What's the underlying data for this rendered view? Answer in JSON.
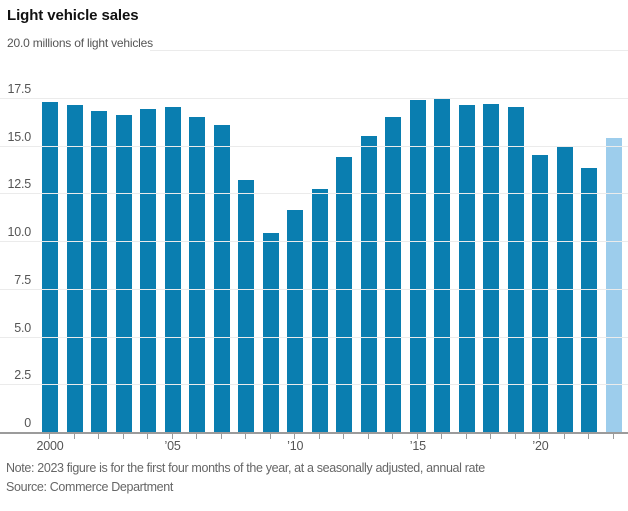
{
  "chart_data": {
    "type": "bar",
    "title": "Light vehicle sales",
    "y_axis_top_label": "20.0",
    "y_axis_unit_label": "millions of light vehicles",
    "ylabel": "millions of light vehicles",
    "xlabel": "",
    "ylim": [
      0,
      20
    ],
    "grid": true,
    "y_ticks": [
      {
        "label": "20.0",
        "value": 20
      },
      {
        "label": "17.5",
        "value": 17.5
      },
      {
        "label": "15.0",
        "value": 15
      },
      {
        "label": "12.5",
        "value": 12.5
      },
      {
        "label": "10.0",
        "value": 10
      },
      {
        "label": "7.5",
        "value": 7.5
      },
      {
        "label": "5.0",
        "value": 5
      },
      {
        "label": "2.5",
        "value": 2.5
      },
      {
        "label": "0",
        "value": 0
      }
    ],
    "categories": [
      2000,
      2001,
      2002,
      2003,
      2004,
      2005,
      2006,
      2007,
      2008,
      2009,
      2010,
      2011,
      2012,
      2013,
      2014,
      2015,
      2016,
      2017,
      2018,
      2019,
      2020,
      2021,
      2022,
      2023
    ],
    "values": [
      17.3,
      17.1,
      16.8,
      16.6,
      16.9,
      17.0,
      16.5,
      16.1,
      13.2,
      10.4,
      11.6,
      12.7,
      14.4,
      15.5,
      16.5,
      17.4,
      17.5,
      17.1,
      17.2,
      17.0,
      14.5,
      14.9,
      13.8,
      15.4
    ],
    "x_ticks": [
      {
        "label": "2000",
        "index": 0
      },
      {
        "label": "’05",
        "index": 5
      },
      {
        "label": "’10",
        "index": 10
      },
      {
        "label": "’15",
        "index": 15
      },
      {
        "label": "’20",
        "index": 20
      }
    ],
    "highlight_index": 23,
    "bar_color": "#0a7eb0",
    "highlight_color": "#9dcdec",
    "gridline_color": "#ebebeb",
    "axis_color": "#9b9b9b",
    "note": "Note: 2023 figure is for the first four months of the year, at a seasonally adjusted, annual rate",
    "source": "Source: Commerce Department"
  }
}
